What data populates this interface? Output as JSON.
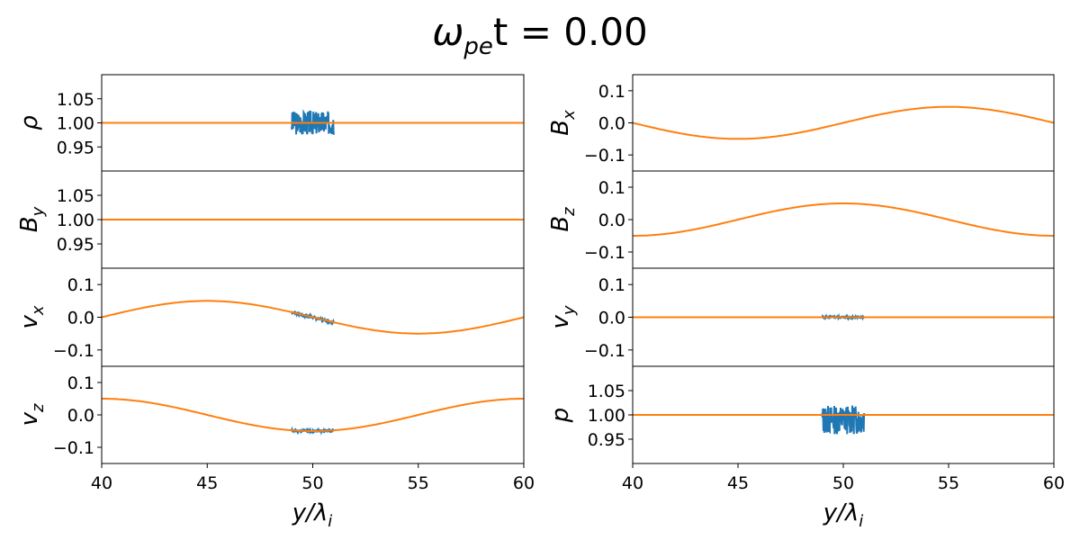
{
  "title": {
    "main": "ω",
    "sub": "pe",
    "tail": "t = 0.00"
  },
  "xlabel": {
    "main": "y/λ",
    "sub": "i"
  },
  "colors": {
    "measured": "#1f77b4",
    "model": "#ff7f0e",
    "axis": "#000000"
  },
  "chart_data": [
    {
      "type": "line",
      "ylabel": {
        "main": "ρ",
        "sub": ""
      },
      "xlim": [
        40,
        60
      ],
      "ylim": [
        0.9,
        1.1
      ],
      "yticks": [
        "1.05",
        "1.00",
        "0.95"
      ],
      "ytick_values": [
        1.05,
        1.0,
        0.95
      ],
      "xticks": [],
      "model": {
        "kind": "const",
        "value": 1.0
      },
      "noise": {
        "x_range": [
          49,
          51
        ],
        "center": 1.0,
        "amplitude": 0.025,
        "offset": 0.0,
        "seed": 3
      }
    },
    {
      "type": "line",
      "ylabel": {
        "main": "B",
        "sub": "y"
      },
      "xlim": [
        40,
        60
      ],
      "ylim": [
        0.9,
        1.1
      ],
      "yticks": [
        "1.05",
        "1.00",
        "0.95"
      ],
      "ytick_values": [
        1.05,
        1.0,
        0.95
      ],
      "xticks": [],
      "model": {
        "kind": "const",
        "value": 1.0
      },
      "noise": null
    },
    {
      "type": "line",
      "ylabel": {
        "main": "v",
        "sub": "x"
      },
      "xlim": [
        40,
        60
      ],
      "ylim": [
        -0.15,
        0.15
      ],
      "yticks": [
        "0.1",
        "0.0",
        "−0.1"
      ],
      "ytick_values": [
        0.1,
        0.0,
        -0.1
      ],
      "xticks": [],
      "model": {
        "kind": "sin",
        "amplitude": 0.05
      },
      "noise": {
        "x_range": [
          49,
          51
        ],
        "center": null,
        "amplitude": 0.004,
        "offset": 0.0,
        "seed": 7
      }
    },
    {
      "type": "line",
      "ylabel": {
        "main": "v",
        "sub": "z"
      },
      "xlim": [
        40,
        60
      ],
      "ylim": [
        -0.15,
        0.15
      ],
      "yticks": [
        "0.1",
        "0.0",
        "−0.1"
      ],
      "ytick_values": [
        0.1,
        0.0,
        -0.1
      ],
      "xticks": [
        "40",
        "45",
        "50",
        "55",
        "60"
      ],
      "xtick_values": [
        40,
        45,
        50,
        55,
        60
      ],
      "model": {
        "kind": "cos",
        "amplitude": 0.05
      },
      "noise": {
        "x_range": [
          49,
          51
        ],
        "center": null,
        "amplitude": 0.004,
        "offset": 0.0,
        "seed": 11
      }
    },
    {
      "type": "line",
      "ylabel": {
        "main": "B",
        "sub": "x"
      },
      "xlim": [
        40,
        60
      ],
      "ylim": [
        -0.15,
        0.15
      ],
      "yticks": [
        "0.1",
        "0.0",
        "−0.1"
      ],
      "ytick_values": [
        0.1,
        0.0,
        -0.1
      ],
      "xticks": [],
      "model": {
        "kind": "sin",
        "amplitude": -0.05
      },
      "noise": null
    },
    {
      "type": "line",
      "ylabel": {
        "main": "B",
        "sub": "z"
      },
      "xlim": [
        40,
        60
      ],
      "ylim": [
        -0.15,
        0.15
      ],
      "yticks": [
        "0.1",
        "0.0",
        "−0.1"
      ],
      "ytick_values": [
        0.1,
        0.0,
        -0.1
      ],
      "xticks": [],
      "model": {
        "kind": "cos",
        "amplitude": -0.05
      },
      "noise": null
    },
    {
      "type": "line",
      "ylabel": {
        "main": "v",
        "sub": "y"
      },
      "xlim": [
        40,
        60
      ],
      "ylim": [
        -0.15,
        0.15
      ],
      "yticks": [
        "0.1",
        "0.0",
        "−0.1"
      ],
      "ytick_values": [
        0.1,
        0.0,
        -0.1
      ],
      "xticks": [],
      "model": {
        "kind": "const",
        "value": 0.0
      },
      "noise": {
        "x_range": [
          49,
          51
        ],
        "center": 0.0,
        "amplitude": 0.003,
        "offset": 0.0,
        "seed": 5
      }
    },
    {
      "type": "line",
      "ylabel": {
        "main": "p",
        "sub": ""
      },
      "xlim": [
        40,
        60
      ],
      "ylim": [
        0.9,
        1.1
      ],
      "yticks": [
        "1.05",
        "1.00",
        "0.95"
      ],
      "ytick_values": [
        1.05,
        1.0,
        0.95
      ],
      "xticks": [
        "40",
        "45",
        "50",
        "55",
        "60"
      ],
      "xtick_values": [
        40,
        45,
        50,
        55,
        60
      ],
      "model": {
        "kind": "const",
        "value": 1.0
      },
      "noise": {
        "x_range": [
          49,
          51
        ],
        "center": 0.99,
        "amplitude": 0.03,
        "offset": 0.0,
        "seed": 13
      }
    }
  ]
}
